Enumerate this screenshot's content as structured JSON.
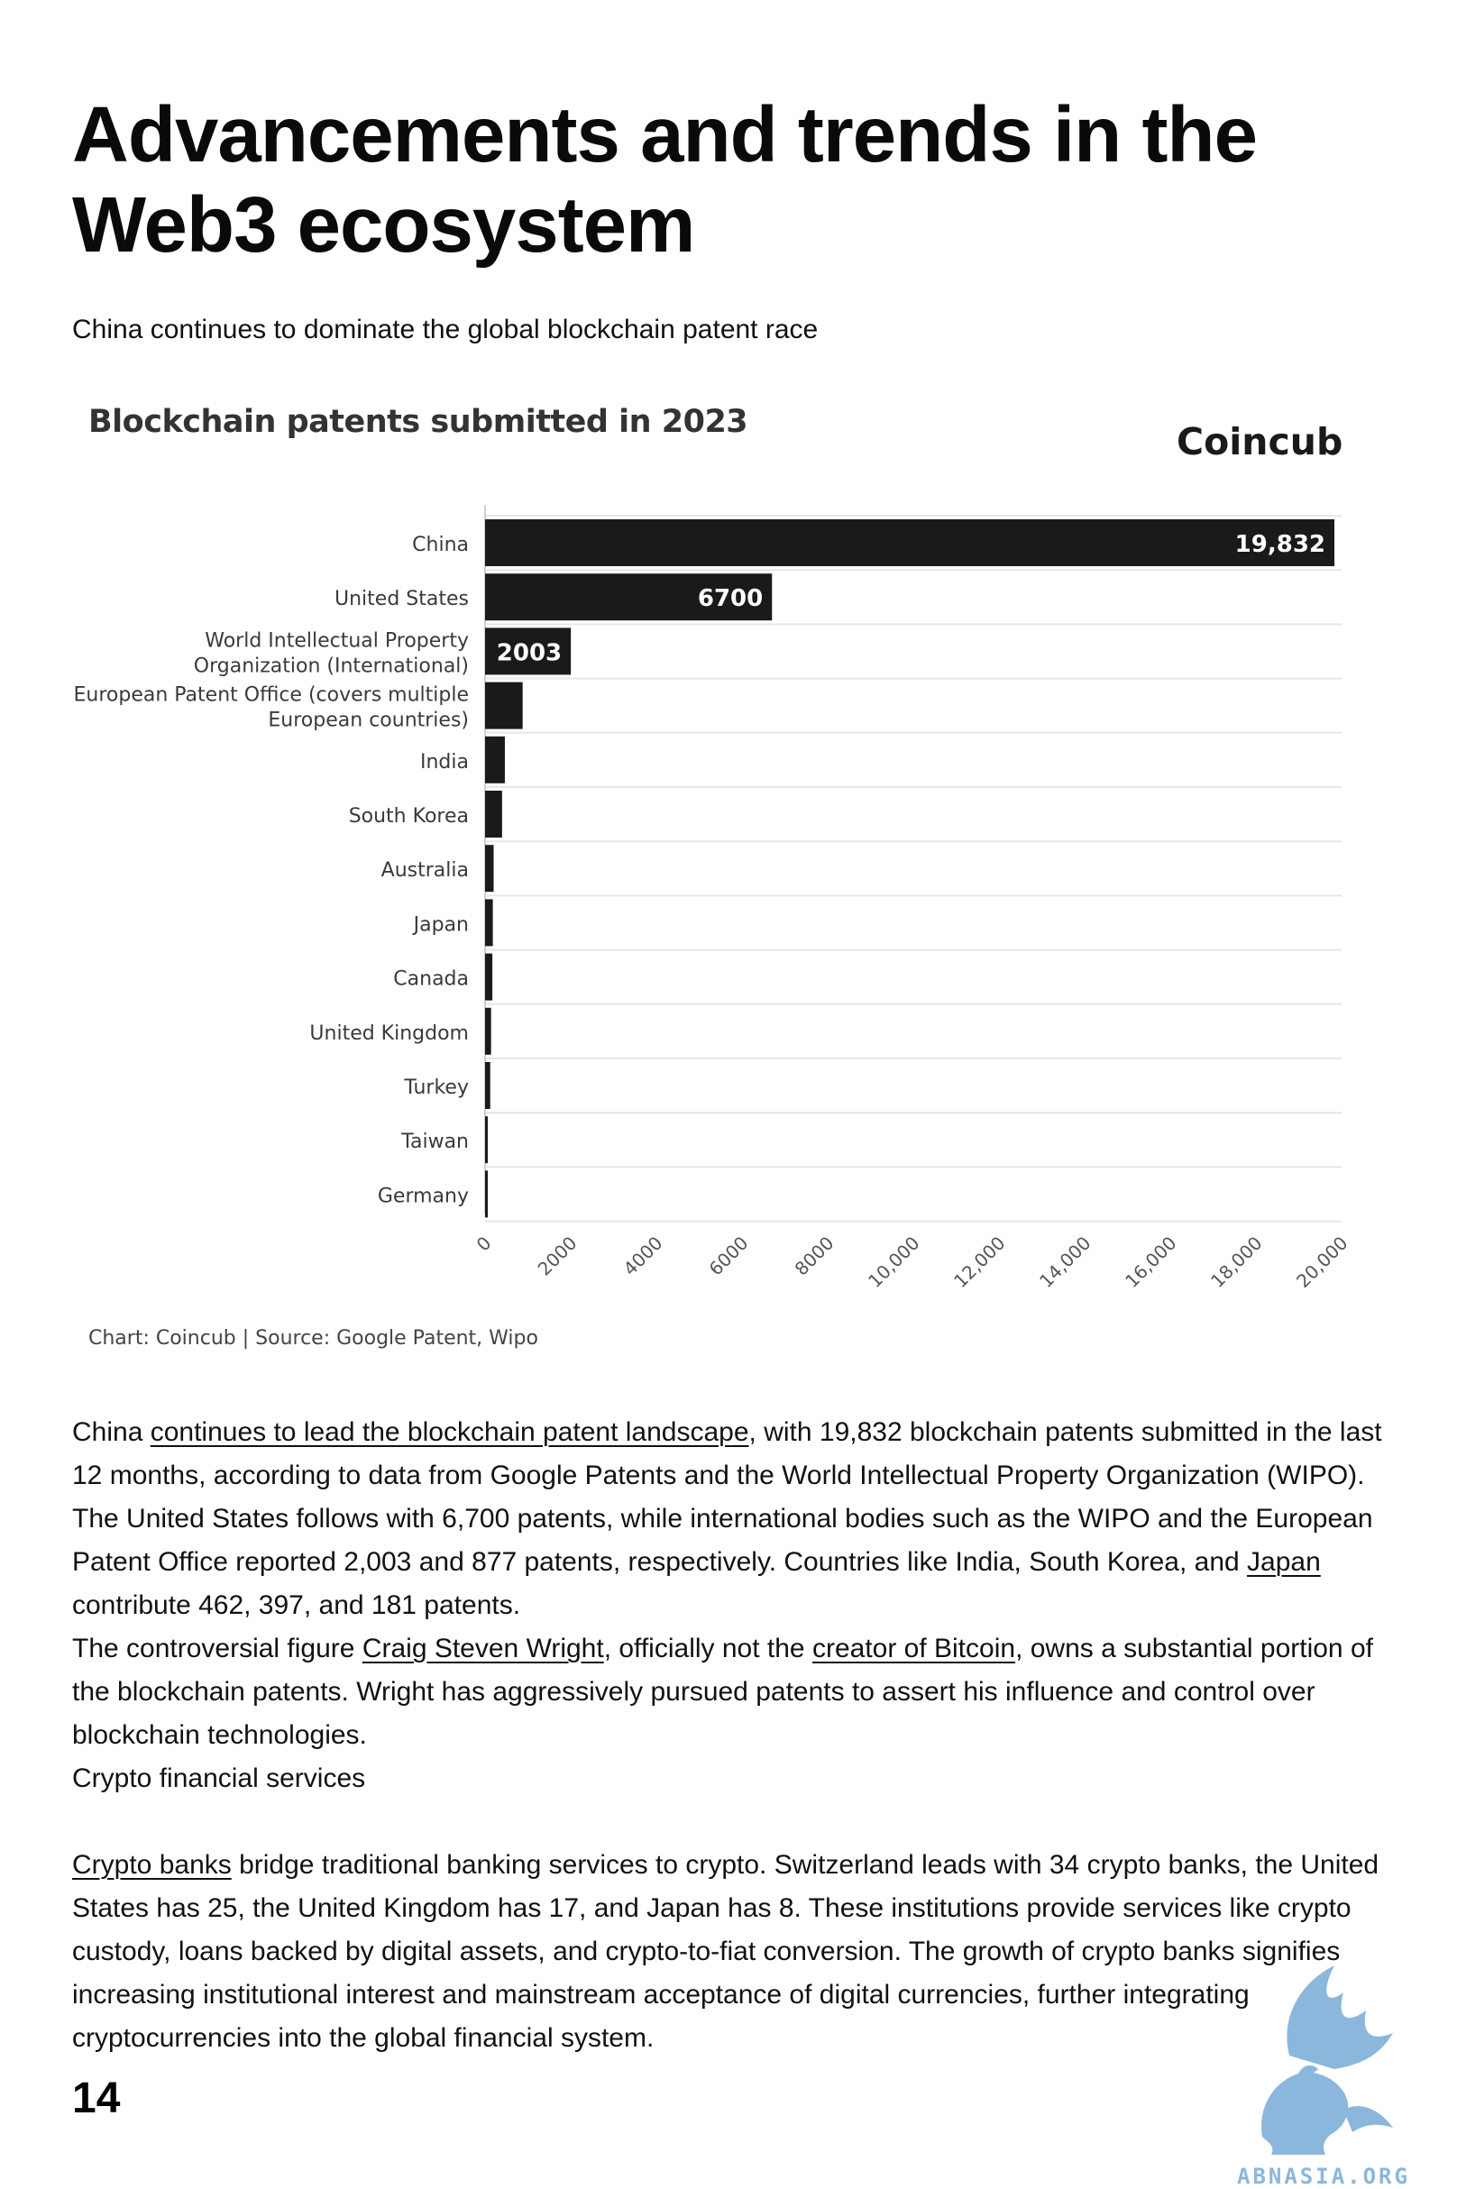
{
  "page": {
    "title": "Advancements and trends in the Web3 ecosystem",
    "subtitle": "China continues to dominate the global blockchain patent race",
    "page_number": "14"
  },
  "chart_header": {
    "title": "Blockchain patents submitted in 2023",
    "brand": "Coincub",
    "source": "Chart: Coincub | Source: Google Patent, Wipo"
  },
  "chart_data": {
    "type": "bar",
    "orientation": "horizontal",
    "title": "Blockchain patents submitted in 2023",
    "categories": [
      "China",
      "United States",
      "World Intellectual Property Organization (International)",
      "European Patent Office (covers multiple European countries)",
      "India",
      "South Korea",
      "Australia",
      "Japan",
      "Canada",
      "United Kingdom",
      "Turkey",
      "Taiwan",
      "Germany"
    ],
    "category_lines": [
      [
        "China"
      ],
      [
        "United States"
      ],
      [
        "World Intellectual Property",
        "Organization (International)"
      ],
      [
        "European Patent Office (covers multiple",
        "European countries)"
      ],
      [
        "India"
      ],
      [
        "South Korea"
      ],
      [
        "Australia"
      ],
      [
        "Japan"
      ],
      [
        "Canada"
      ],
      [
        "United Kingdom"
      ],
      [
        "Turkey"
      ],
      [
        "Taiwan"
      ],
      [
        "Germany"
      ]
    ],
    "values": [
      19832,
      6700,
      2003,
      877,
      462,
      397,
      200,
      181,
      170,
      140,
      120,
      60,
      40
    ],
    "data_labels": [
      "19,832",
      "6700",
      "2003",
      "",
      "",
      "",
      "",
      "",
      "",
      "",
      "",
      "",
      ""
    ],
    "xlim": [
      0,
      20000
    ],
    "xticks": [
      0,
      2000,
      4000,
      6000,
      8000,
      10000,
      12000,
      14000,
      16000,
      18000,
      20000
    ],
    "xtick_labels": [
      "0",
      "2000",
      "4000",
      "6000",
      "8000",
      "10,000",
      "12,000",
      "14,000",
      "16,000",
      "18,000",
      "20,000"
    ],
    "grid": true,
    "bar_color": "#1a1a1a",
    "label_color": "#ffffff"
  },
  "body": {
    "p1": {
      "t1": "China ",
      "link1": "continues to lead the blockchain patent landscape",
      "t2": ", with 19,832 blockchain patents submitted in the last 12 months, according to data from Google Patents and the World Intellectual Property Organization (WIPO). The United States follows with 6,700 patents, while international bodies such as the WIPO and the European Patent Office reported 2,003 and 877 patents, respectively. Countries like India, South Korea, and ",
      "link2": "Japan",
      "t3": " contribute 462, 397, and 181 patents."
    },
    "p2": {
      "t1": "The controversial figure ",
      "link1": "Craig Steven Wright",
      "t2": ", officially not the ",
      "link2": "creator of Bitcoin",
      "t3": ", owns a substantial portion of the blockchain patents. Wright has aggressively pursued patents to assert his influence and control over blockchain technologies."
    },
    "p3": "Crypto financial services",
    "p4": {
      "link1": "Crypto banks",
      "t1": " bridge traditional banking services to crypto. Switzerland leads with 34 crypto banks, the United States has 25, the United Kingdom has 17, and Japan has 8. These institutions provide services like crypto custody, loans backed by digital assets, and crypto-to-fiat conversion. The growth of crypto banks signifies increasing institutional interest and mainstream acceptance of digital currencies, further integrating cryptocurrencies into the global financial system."
    }
  },
  "watermark": {
    "text": "ABNASIA.ORG",
    "icon": "griffin-icon",
    "color": "#8bb7dc"
  }
}
